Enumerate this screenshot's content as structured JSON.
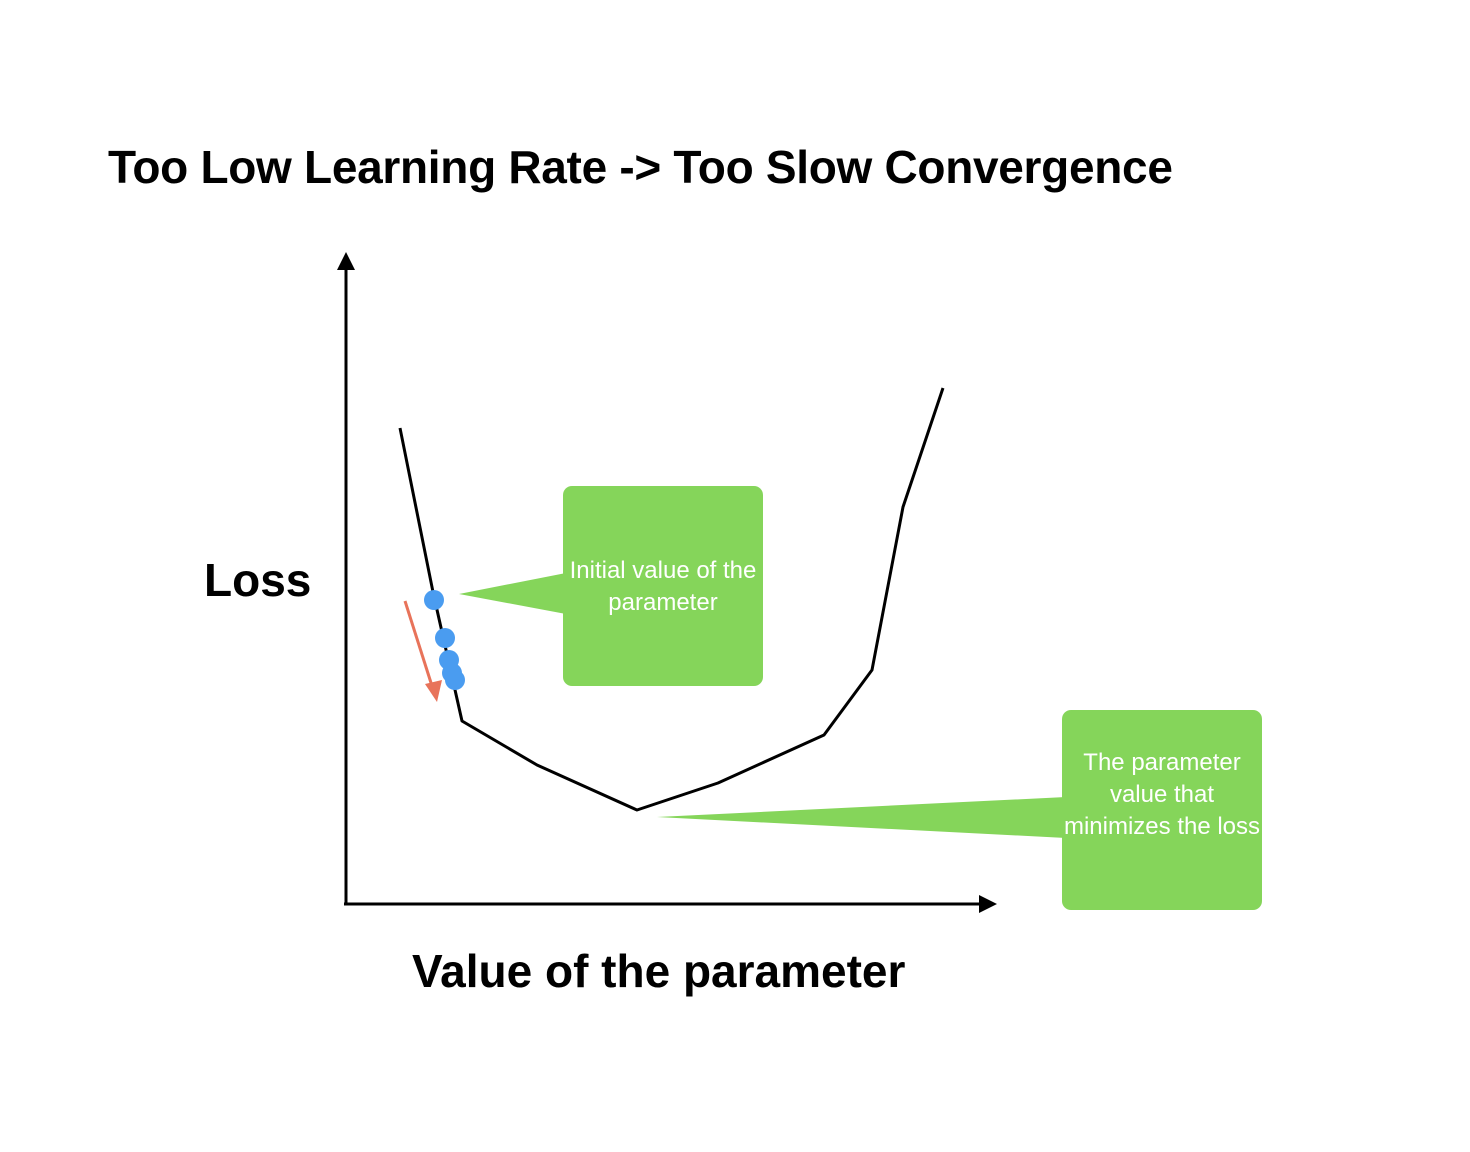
{
  "title": "Too Low Learning Rate -> Too Slow Convergence",
  "axes": {
    "y_label": "Loss",
    "x_label": "Value of the parameter"
  },
  "callouts": {
    "initial": "Initial value of the parameter",
    "minimum": "The parameter value that minimizes the loss"
  },
  "colors": {
    "callout_fill": "#85d55a",
    "point_fill": "#4a9cf0",
    "arrow": "#e8735a",
    "curve": "#000000"
  },
  "steps": 5
}
